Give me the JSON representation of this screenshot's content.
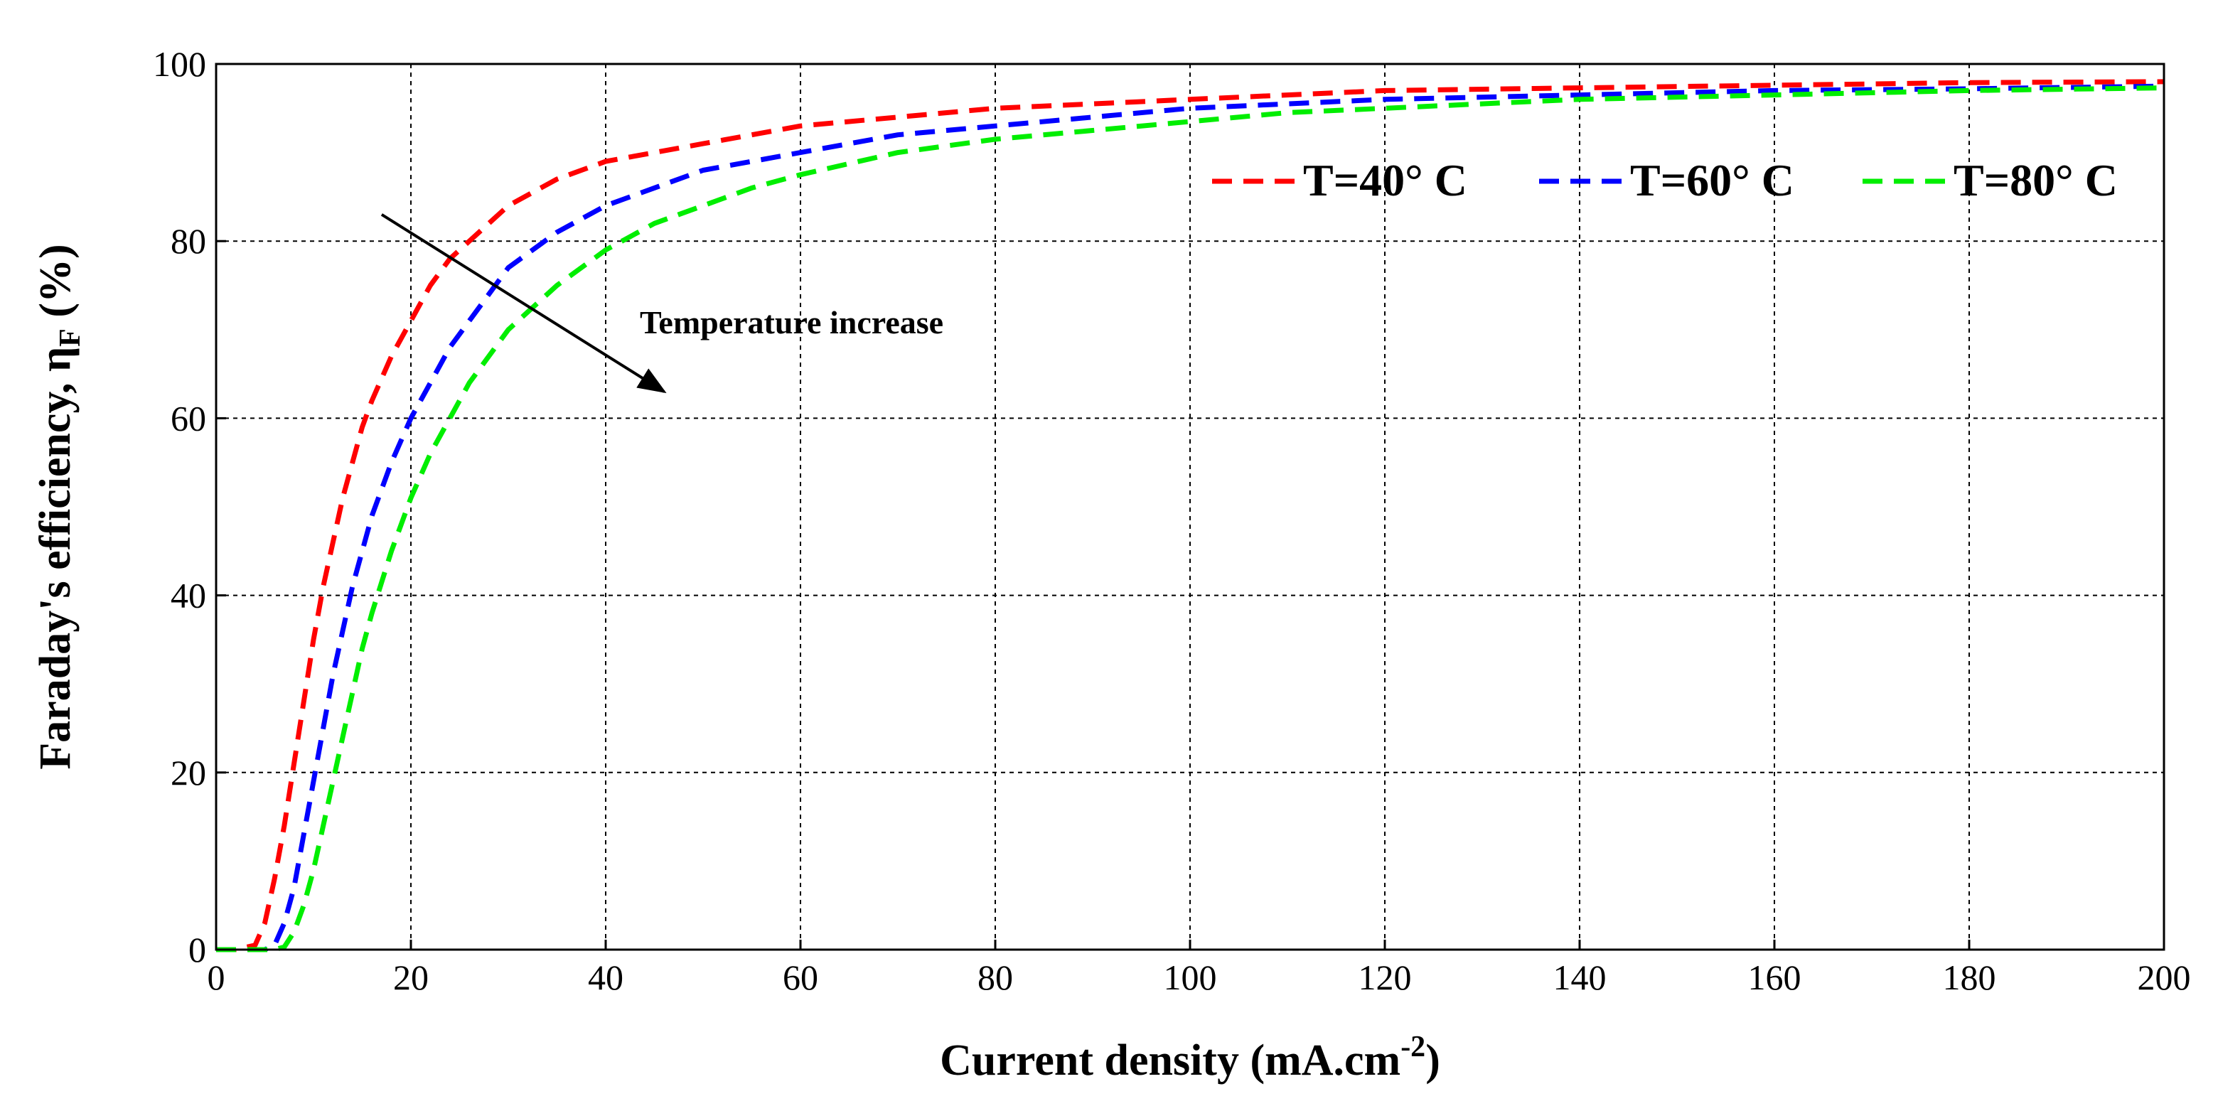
{
  "chart_data": {
    "type": "line",
    "title": "",
    "xlabel": "Current density (mA.cm",
    "xlabel_superscript": "-2",
    "xlabel_close": ")",
    "ylabel": "Faraday's efficiency, η",
    "ylabel_subscript": "F",
    "ylabel_suffix": " (%)",
    "xlim": [
      0,
      200
    ],
    "ylim": [
      0,
      100
    ],
    "xticks": [
      "0",
      "20",
      "40",
      "60",
      "80",
      "100",
      "120",
      "140",
      "160",
      "180",
      "200"
    ],
    "yticks": [
      "0",
      "20",
      "40",
      "60",
      "80",
      "100"
    ],
    "grid": true,
    "legend_position": "top-right",
    "x": [
      0,
      2,
      4,
      5,
      6,
      7,
      8,
      9,
      10,
      11,
      12,
      13,
      14,
      15,
      16,
      18,
      20,
      22,
      24,
      26,
      28,
      30,
      35,
      40,
      45,
      50,
      55,
      60,
      70,
      80,
      90,
      100,
      110,
      120,
      140,
      160,
      180,
      200
    ],
    "series": [
      {
        "name": "T=40° C",
        "color": "#ff0000",
        "values": [
          0,
          0,
          0.5,
          3,
          8,
          14,
          21,
          28,
          35,
          41,
          46,
          51,
          55,
          59,
          62,
          67,
          71,
          75,
          78,
          80,
          82,
          84,
          87,
          89,
          90,
          91,
          92,
          93,
          94,
          95,
          95.5,
          96,
          96.5,
          97,
          97.3,
          97.6,
          97.9,
          98
        ]
      },
      {
        "name": "T=60° C",
        "color": "#0000ff",
        "values": [
          0,
          0,
          0,
          0,
          0.5,
          3,
          7,
          13,
          19,
          25,
          31,
          36,
          41,
          45,
          49,
          55,
          60,
          64,
          68,
          71,
          74,
          77,
          81,
          84,
          86,
          88,
          89,
          90,
          92,
          93,
          94,
          95,
          95.5,
          96,
          96.5,
          97,
          97.2,
          97.5
        ]
      },
      {
        "name": "T=80° C",
        "color": "#00ee00",
        "values": [
          0,
          0,
          0,
          0,
          0,
          0.3,
          2,
          5,
          9,
          14,
          19,
          24,
          29,
          34,
          38,
          45,
          51,
          56,
          60,
          64,
          67,
          70,
          75,
          79,
          82,
          84,
          86,
          87.5,
          90,
          91.5,
          92.5,
          93.5,
          94.5,
          95,
          96,
          96.5,
          97,
          97.3
        ]
      }
    ],
    "annotations": [
      {
        "text": "Temperature increase",
        "type": "arrow",
        "from": [
          17,
          83
        ],
        "to": [
          46,
          63
        ]
      }
    ]
  }
}
